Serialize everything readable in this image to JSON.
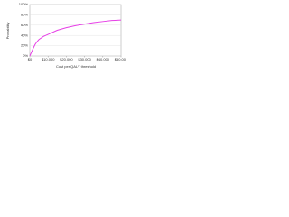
{
  "chart_data": {
    "type": "line",
    "x_label": "Cost per QALY threshold",
    "y_label": "Probability",
    "x": [
      0,
      1000,
      2000,
      3000,
      4000,
      5000,
      7500,
      10000,
      15000,
      20000,
      25000,
      30000,
      35000,
      40000,
      45000,
      50000
    ],
    "values": [
      0,
      8,
      16,
      23,
      28,
      32,
      38,
      42,
      50,
      55,
      59,
      62,
      65,
      67,
      69,
      70
    ],
    "color": "#e63ee6",
    "xlim": [
      0,
      50000
    ],
    "xticks": [
      {
        "value": 0,
        "label": "$0"
      },
      {
        "value": 10000,
        "label": "$10,000"
      },
      {
        "value": 20000,
        "label": "$20,000"
      },
      {
        "value": 30000,
        "label": "$30,000"
      },
      {
        "value": 40000,
        "label": "$40,000"
      },
      {
        "value": 50000,
        "label": "$50,000"
      }
    ],
    "ylim": [
      0,
      100
    ],
    "yticks": [
      {
        "value": 0,
        "label": "0%"
      },
      {
        "value": 20,
        "label": "20%"
      },
      {
        "value": 40,
        "label": "40%"
      },
      {
        "value": 60,
        "label": "60%"
      },
      {
        "value": 80,
        "label": "80%"
      },
      {
        "value": 100,
        "label": "100%"
      }
    ],
    "grid": true
  }
}
